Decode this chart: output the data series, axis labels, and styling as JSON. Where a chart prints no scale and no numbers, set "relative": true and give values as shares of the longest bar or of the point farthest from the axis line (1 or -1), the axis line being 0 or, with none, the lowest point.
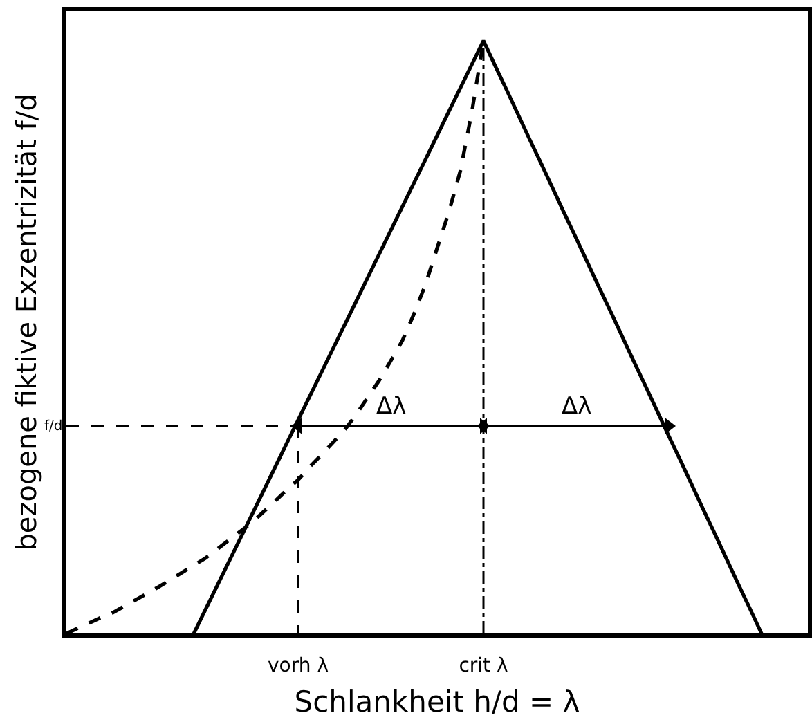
{
  "chart_data": {
    "type": "line",
    "relative": true,
    "xlabel": "Schlankheit h/d = λ",
    "ylabel": "bezogene fiktive Exzentrizität f/d",
    "tick_labels": "x",
    "categories": [
      null,
      null,
      null,
      null,
      null,
      null,
      null,
      null,
      null,
      null,
      null,
      null,
      null,
      null,
      null,
      null,
      null,
      null,
      null,
      null,
      "vorh λ",
      null,
      null,
      null,
      null,
      null,
      null,
      null,
      null,
      null,
      null,
      null,
      null,
      null,
      null,
      null,
      "crit λ",
      null,
      null,
      null,
      null,
      null,
      null,
      null,
      null,
      null,
      null,
      null,
      null,
      null,
      null,
      null,
      null,
      null,
      null,
      null,
      null,
      null,
      null,
      null,
      null,
      null,
      null,
      null,
      null
    ],
    "series": [
      {
        "color": "#000000",
        "line_style": "solid",
        "values": [
          null,
          null,
          null,
          null,
          null,
          null,
          null,
          null,
          null,
          null,
          null,
          0,
          0.04,
          0.08,
          0.12,
          0.16,
          0.2,
          0.24,
          0.28,
          0.32,
          0.36,
          0.4,
          0.44,
          0.48,
          0.52,
          0.56,
          0.6,
          0.64,
          0.68,
          0.72,
          0.76,
          0.8,
          0.84,
          0.88,
          0.92,
          0.96,
          1,
          0.958,
          0.917,
          0.875,
          0.833,
          0.792,
          0.75,
          0.708,
          0.667,
          0.625,
          0.583,
          0.542,
          0.5,
          0.458,
          0.417,
          0.375,
          0.333,
          0.292,
          0.25,
          0.208,
          0.167,
          0.125,
          0.083,
          0.042,
          0,
          null,
          null,
          null,
          null
        ]
      },
      {
        "color": "#000000",
        "line_style": "dashed",
        "values": [
          0,
          0.009,
          0.018,
          0.027,
          0.035,
          0.046,
          0.057,
          0.068,
          0.079,
          0.091,
          0.103,
          0.115,
          0.127,
          0.142,
          0.157,
          0.172,
          0.187,
          0.205,
          0.223,
          0.242,
          0.259,
          0.281,
          0.301,
          0.322,
          0.343,
          0.369,
          0.398,
          0.427,
          0.46,
          0.494,
          0.539,
          0.589,
          0.65,
          0.71,
          0.78,
          0.88,
          1,
          null,
          null,
          null,
          null,
          null,
          null,
          null,
          null,
          null,
          null,
          null,
          null,
          null,
          null,
          null,
          null,
          null,
          null,
          null,
          null,
          null,
          null,
          null,
          null,
          null,
          null,
          null,
          null
        ]
      },
      {
        "name": "f/d",
        "color": "#000000",
        "line_style": "dashed",
        "values": [
          0.35,
          0.35,
          0.35,
          0.35,
          0.35,
          0.35,
          0.35,
          0.35,
          0.35,
          0.35,
          0.35,
          0.35,
          0.35,
          0.35,
          0.35,
          0.35,
          0.35,
          0.35,
          0.35,
          0.35,
          0.35,
          null,
          null,
          null,
          null,
          null,
          null,
          null,
          null,
          null,
          null,
          null,
          null,
          null,
          null,
          null,
          null,
          null,
          null,
          null,
          null,
          null,
          null,
          null,
          null,
          null,
          null,
          null,
          null,
          null,
          null,
          null,
          null,
          null,
          null,
          null,
          null,
          null,
          null,
          null,
          null,
          null,
          null,
          null,
          null
        ]
      },
      {
        "color": "#000000",
        "line_style": "dashed",
        "x": [
          "vorh λ",
          "vorh λ"
        ],
        "values": [
          0.35,
          0
        ]
      },
      {
        "color": "#000000",
        "line_style": "dashdot",
        "x": [
          "crit λ",
          "crit λ"
        ],
        "values": [
          0,
          1
        ]
      },
      {
        "name": "Δλ",
        "color": "#000000",
        "line_style": "solid",
        "marker": "triangle",
        "x": [
          "vorh λ",
          "crit λ"
        ],
        "values": [
          0.35,
          0.35
        ]
      },
      {
        "name": "Δλ",
        "color": "#000000",
        "line_style": "solid",
        "marker": "triangle",
        "values": [
          null,
          null,
          null,
          null,
          null,
          null,
          null,
          null,
          null,
          null,
          null,
          null,
          null,
          null,
          null,
          null,
          null,
          null,
          null,
          null,
          null,
          null,
          null,
          null,
          null,
          null,
          null,
          null,
          null,
          null,
          null,
          null,
          null,
          null,
          null,
          null,
          0.35,
          null,
          null,
          null,
          null,
          null,
          null,
          null,
          null,
          null,
          null,
          null,
          null,
          null,
          null,
          null,
          0.35,
          null,
          null,
          null,
          null,
          null,
          null,
          null,
          null,
          null,
          null,
          null,
          null
        ]
      }
    ]
  }
}
